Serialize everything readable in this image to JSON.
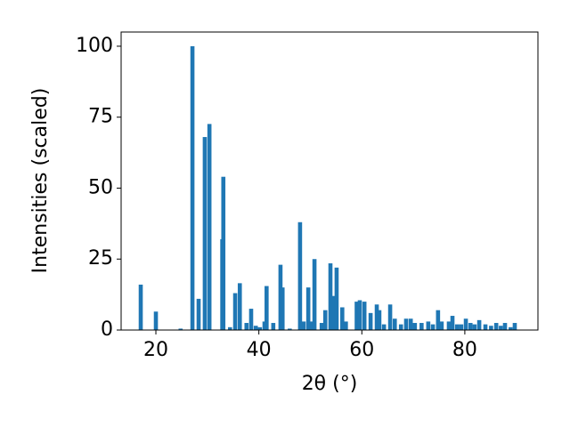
{
  "chart_data": {
    "type": "bar",
    "xlabel": "2θ (°)",
    "ylabel": "Intensities (scaled)",
    "x": [
      17.06,
      20.0,
      24.8,
      27.1,
      28.3,
      29.5,
      30.4,
      32.9,
      33.1,
      34.4,
      35.4,
      36.3,
      37.6,
      38.5,
      39.4,
      40.2,
      41.1,
      41.5,
      42.8,
      44.2,
      44.6,
      46.0,
      48.0,
      48.7,
      49.6,
      50.3,
      50.8,
      52.2,
      52.9,
      53.9,
      54.4,
      55.1,
      56.2,
      56.9,
      59.0,
      59.6,
      60.5,
      61.7,
      62.9,
      63.4,
      64.3,
      65.5,
      66.4,
      67.6,
      68.6,
      69.5,
      70.3,
      71.6,
      72.9,
      73.8,
      74.8,
      75.5,
      76.9,
      77.6,
      78.5,
      79.3,
      80.2,
      81.1,
      81.9,
      82.8,
      84.0,
      85.1,
      86.1,
      87.0,
      87.8,
      88.9,
      89.7
    ],
    "values": [
      16,
      6.5,
      0.5,
      100,
      11,
      68,
      72.6,
      32,
      54,
      1,
      13,
      16.5,
      2.5,
      7.5,
      1.5,
      1,
      3,
      15.5,
      2.5,
      23,
      15,
      0.5,
      38,
      3,
      15,
      3,
      25,
      2.5,
      7,
      23.5,
      12,
      22,
      8,
      3,
      10,
      10.5,
      10,
      6,
      9,
      7,
      2,
      9,
      4,
      2,
      4,
      4,
      2.5,
      2.5,
      3,
      2,
      7,
      3,
      3,
      5,
      2,
      2,
      4,
      2.5,
      2,
      3.5,
      2,
      1.5,
      2.5,
      1.5,
      2.5,
      1,
      2.5
    ],
    "color": "#1f77b4",
    "xlim": [
      13.25,
      94.2
    ],
    "ylim": [
      0,
      105
    ],
    "xticks": [
      20,
      40,
      60,
      80
    ],
    "yticks": [
      0,
      25,
      50,
      75,
      100
    ]
  }
}
